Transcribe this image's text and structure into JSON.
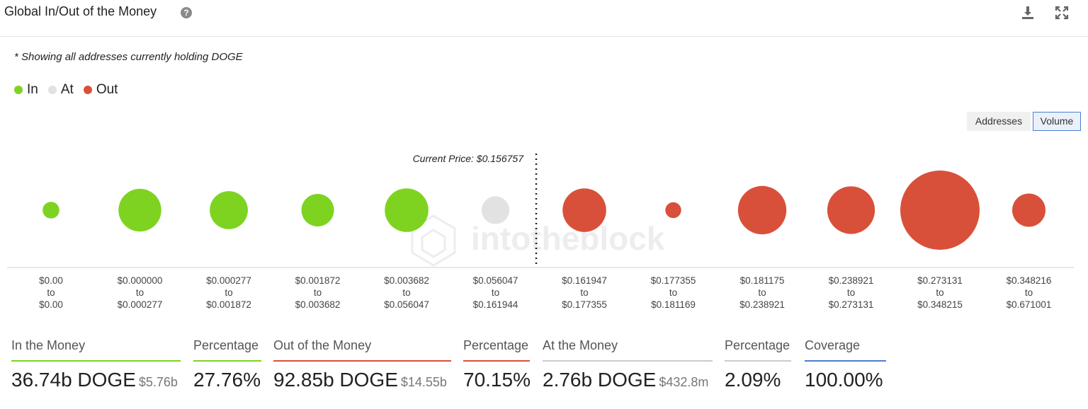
{
  "header": {
    "title": "Global In/Out of the Money",
    "help_icon": "?",
    "download_icon": "download-icon",
    "expand_icon": "expand-icon"
  },
  "note": "* Showing all addresses currently holding DOGE",
  "legend": [
    {
      "label": "In",
      "color": "#7ed321"
    },
    {
      "label": "At",
      "color": "#e2e2e2"
    },
    {
      "label": "Out",
      "color": "#d9503a"
    }
  ],
  "toggle": {
    "addresses": "Addresses",
    "volume": "Volume",
    "selected": "Volume"
  },
  "chart_data": {
    "type": "scatter",
    "encoding": "bubble area = volume held",
    "current_price_label": "Current Price: $0.156757",
    "current_price": 0.156757,
    "watermark": "intotheblock",
    "buckets": [
      {
        "low": "$0.00",
        "high": "$0.00",
        "status": "In",
        "relative_size": 0.21
      },
      {
        "low": "$0.000000",
        "high": "$0.000277",
        "status": "In",
        "relative_size": 0.54
      },
      {
        "low": "$0.000277",
        "high": "$0.001872",
        "status": "In",
        "relative_size": 0.48
      },
      {
        "low": "$0.001872",
        "high": "$0.003682",
        "status": "In",
        "relative_size": 0.41
      },
      {
        "low": "$0.003682",
        "high": "$0.056047",
        "status": "In",
        "relative_size": 0.55
      },
      {
        "low": "$0.056047",
        "high": "$0.161944",
        "status": "At",
        "relative_size": 0.35
      },
      {
        "low": "$0.161947",
        "high": "$0.177355",
        "status": "Out",
        "relative_size": 0.55
      },
      {
        "low": "$0.177355",
        "high": "$0.181169",
        "status": "Out",
        "relative_size": 0.2
      },
      {
        "low": "$0.181175",
        "high": "$0.238921",
        "status": "Out",
        "relative_size": 0.61
      },
      {
        "low": "$0.238921",
        "high": "$0.273131",
        "status": "Out",
        "relative_size": 0.6
      },
      {
        "low": "$0.273131",
        "high": "$0.348215",
        "status": "Out",
        "relative_size": 1.0
      },
      {
        "low": "$0.348216",
        "high": "$0.671001",
        "status": "Out",
        "relative_size": 0.42
      }
    ],
    "range_separator": "to"
  },
  "metrics": [
    {
      "label": "In the Money",
      "value": "36.74b DOGE",
      "sub": "$5.76b",
      "color": "#7ed321"
    },
    {
      "label": "Percentage",
      "value": "27.76%",
      "sub": "",
      "color": "#7ed321"
    },
    {
      "label": "Out of the Money",
      "value": "92.85b DOGE",
      "sub": "$14.55b",
      "color": "#d9503a"
    },
    {
      "label": "Percentage",
      "value": "70.15%",
      "sub": "",
      "color": "#d9503a"
    },
    {
      "label": "At the Money",
      "value": "2.76b DOGE",
      "sub": "$432.8m",
      "color": "#cccccc"
    },
    {
      "label": "Percentage",
      "value": "2.09%",
      "sub": "",
      "color": "#cccccc"
    },
    {
      "label": "Coverage",
      "value": "100.00%",
      "sub": "",
      "color": "#4a7fd1"
    }
  ]
}
